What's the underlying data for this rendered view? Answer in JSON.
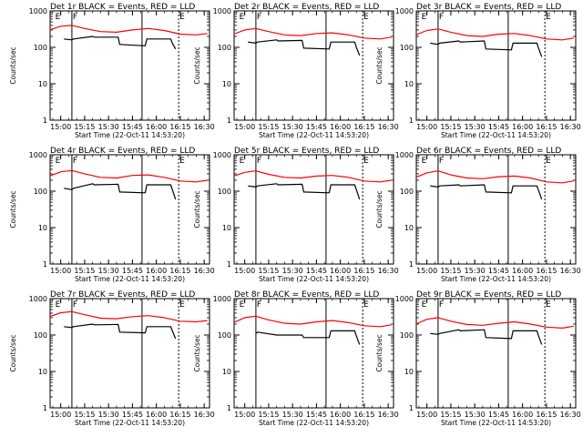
{
  "chart_data": [
    {
      "type": "line",
      "title": "Det 1r BLACK = Events, RED = LLD",
      "xlabel": "Start Time (22-Oct-11 14:53:20)",
      "ylabel": "Counts/sec",
      "yscale": "log",
      "ylim": [
        1,
        1000
      ],
      "xlim": [
        "14:53:20",
        "16:33:20"
      ],
      "xticks": [
        "15:00",
        "15:15",
        "15:30",
        "15:45",
        "16:00",
        "16:15",
        "16:30"
      ],
      "yticks": [
        "1",
        "10",
        "100",
        "1000"
      ],
      "markers": [
        {
          "label": "E",
          "time": "14:56"
        },
        {
          "label": "F",
          "time": "15:07"
        },
        {
          "label": "E",
          "time": "16:14"
        }
      ],
      "series": [
        {
          "color": "#ff0000",
          "x": [
            "14:53",
            "15:00",
            "15:07",
            "15:15",
            "15:25",
            "15:35",
            "15:45",
            "15:55",
            "16:05",
            "16:15",
            "16:25",
            "16:32"
          ],
          "y": [
            300,
            380,
            400,
            330,
            270,
            260,
            300,
            330,
            290,
            230,
            220,
            240
          ]
        },
        {
          "color": "#000000",
          "x": [
            "15:02",
            "15:07",
            "15:08",
            "15:20",
            "15:21",
            "15:36",
            "15:37",
            "15:53",
            "15:54",
            "16:09",
            "16:10",
            "16:12"
          ],
          "y": [
            170,
            160,
            170,
            200,
            190,
            190,
            120,
            110,
            170,
            170,
            130,
            90
          ]
        }
      ]
    },
    {
      "type": "line",
      "title": "Det 2r BLACK = Events, RED = LLD",
      "xlabel": "Start Time (22-Oct-11 14:53:20)",
      "ylabel": "Counts/sec",
      "yscale": "log",
      "ylim": [
        1,
        1000
      ],
      "xlim": [
        "14:53:20",
        "16:33:20"
      ],
      "xticks": [
        "15:00",
        "15:15",
        "15:30",
        "15:45",
        "16:00",
        "16:15",
        "16:30"
      ],
      "yticks": [
        "1",
        "10",
        "100",
        "1000"
      ],
      "markers": [
        {
          "label": "E",
          "time": "14:56"
        },
        {
          "label": "F",
          "time": "15:07"
        },
        {
          "label": "E",
          "time": "16:14"
        }
      ],
      "series": [
        {
          "color": "#ff0000",
          "x": [
            "14:53",
            "15:00",
            "15:07",
            "15:15",
            "15:25",
            "15:35",
            "15:45",
            "15:55",
            "16:05",
            "16:15",
            "16:25",
            "16:32"
          ],
          "y": [
            230,
            300,
            330,
            270,
            220,
            210,
            240,
            250,
            220,
            180,
            170,
            190
          ]
        },
        {
          "color": "#000000",
          "x": [
            "15:02",
            "15:07",
            "15:08",
            "15:20",
            "15:21",
            "15:36",
            "15:37",
            "15:53",
            "15:54",
            "16:09",
            "16:10",
            "16:12"
          ],
          "y": [
            140,
            130,
            140,
            160,
            150,
            155,
            95,
            90,
            140,
            140,
            100,
            60
          ]
        }
      ]
    },
    {
      "type": "line",
      "title": "Det 3r BLACK = Events, RED = LLD",
      "xlabel": "Start Time (22-Oct-11 14:53:20)",
      "ylabel": "Counts/sec",
      "yscale": "log",
      "ylim": [
        1,
        1000
      ],
      "xlim": [
        "14:53:20",
        "16:33:20"
      ],
      "xticks": [
        "15:00",
        "15:15",
        "15:30",
        "15:45",
        "16:00",
        "16:15",
        "16:30"
      ],
      "yticks": [
        "1",
        "10",
        "100",
        "1000"
      ],
      "markers": [
        {
          "label": "E",
          "time": "14:56"
        },
        {
          "label": "F",
          "time": "15:07"
        },
        {
          "label": "E",
          "time": "16:14"
        }
      ],
      "series": [
        {
          "color": "#ff0000",
          "x": [
            "14:53",
            "15:00",
            "15:07",
            "15:15",
            "15:25",
            "15:35",
            "15:45",
            "15:55",
            "16:05",
            "16:15",
            "16:25",
            "16:32"
          ],
          "y": [
            220,
            290,
            320,
            260,
            210,
            200,
            230,
            240,
            210,
            170,
            160,
            180
          ]
        },
        {
          "color": "#000000",
          "x": [
            "15:02",
            "15:07",
            "15:08",
            "15:20",
            "15:21",
            "15:36",
            "15:37",
            "15:53",
            "15:54",
            "16:09",
            "16:10",
            "16:12"
          ],
          "y": [
            130,
            120,
            130,
            150,
            140,
            150,
            90,
            85,
            130,
            130,
            95,
            55
          ]
        }
      ]
    },
    {
      "type": "line",
      "title": "Det 4r BLACK = Events, RED = LLD",
      "xlabel": "Start Time (22-Oct-11 14:53:20)",
      "ylabel": "Counts/sec",
      "yscale": "log",
      "ylim": [
        1,
        1000
      ],
      "xlim": [
        "14:53:20",
        "16:33:20"
      ],
      "xticks": [
        "15:00",
        "15:15",
        "15:30",
        "15:45",
        "16:00",
        "16:15",
        "16:30"
      ],
      "yticks": [
        "1",
        "10",
        "100",
        "1000"
      ],
      "markers": [
        {
          "label": "E",
          "time": "14:56"
        },
        {
          "label": "F",
          "time": "15:07"
        },
        {
          "label": "E",
          "time": "16:14"
        }
      ],
      "series": [
        {
          "color": "#ff0000",
          "x": [
            "14:53",
            "15:00",
            "15:07",
            "15:15",
            "15:25",
            "15:35",
            "15:45",
            "15:55",
            "16:05",
            "16:15",
            "16:25",
            "16:32"
          ],
          "y": [
            260,
            340,
            370,
            300,
            240,
            230,
            270,
            280,
            240,
            190,
            180,
            200
          ]
        },
        {
          "color": "#000000",
          "x": [
            "15:02",
            "15:07",
            "15:08",
            "15:20",
            "15:21",
            "15:36",
            "15:37",
            "15:53",
            "15:54",
            "16:09",
            "16:10",
            "16:12"
          ],
          "y": [
            120,
            110,
            120,
            160,
            150,
            155,
            95,
            90,
            150,
            150,
            110,
            60
          ]
        }
      ]
    },
    {
      "type": "line",
      "title": "Det 5r BLACK = Events, RED = LLD",
      "xlabel": "Start Time (22-Oct-11 14:53:20)",
      "ylabel": "Counts/sec",
      "yscale": "log",
      "ylim": [
        1,
        1000
      ],
      "xlim": [
        "14:53:20",
        "16:33:20"
      ],
      "xticks": [
        "15:00",
        "15:15",
        "15:30",
        "15:45",
        "16:00",
        "16:15",
        "16:30"
      ],
      "yticks": [
        "1",
        "10",
        "100",
        "1000"
      ],
      "markers": [
        {
          "label": "E",
          "time": "14:56"
        },
        {
          "label": "F",
          "time": "15:07"
        },
        {
          "label": "E",
          "time": "16:14"
        }
      ],
      "series": [
        {
          "color": "#ff0000",
          "x": [
            "14:53",
            "15:00",
            "15:07",
            "15:15",
            "15:25",
            "15:35",
            "15:45",
            "15:55",
            "16:05",
            "16:15",
            "16:25",
            "16:32"
          ],
          "y": [
            260,
            330,
            360,
            290,
            240,
            230,
            260,
            270,
            240,
            190,
            180,
            200
          ]
        },
        {
          "color": "#000000",
          "x": [
            "15:02",
            "15:07",
            "15:08",
            "15:20",
            "15:21",
            "15:36",
            "15:37",
            "15:53",
            "15:54",
            "16:09",
            "16:10",
            "16:12"
          ],
          "y": [
            140,
            130,
            140,
            160,
            150,
            155,
            95,
            90,
            150,
            150,
            110,
            60
          ]
        }
      ]
    },
    {
      "type": "line",
      "title": "Det 6r BLACK = Events, RED = LLD",
      "xlabel": "Start Time (22-Oct-11 14:53:20)",
      "ylabel": "Counts/sec",
      "yscale": "log",
      "ylim": [
        1,
        1000
      ],
      "xlim": [
        "14:53:20",
        "16:33:20"
      ],
      "xticks": [
        "15:00",
        "15:15",
        "15:30",
        "15:45",
        "16:00",
        "16:15",
        "16:30"
      ],
      "yticks": [
        "1",
        "10",
        "100",
        "1000"
      ],
      "markers": [
        {
          "label": "E",
          "time": "14:56"
        },
        {
          "label": "F",
          "time": "15:07"
        },
        {
          "label": "E",
          "time": "16:14"
        }
      ],
      "series": [
        {
          "color": "#ff0000",
          "x": [
            "14:53",
            "15:00",
            "15:07",
            "15:15",
            "15:25",
            "15:35",
            "15:45",
            "15:55",
            "16:05",
            "16:15",
            "16:25",
            "16:32"
          ],
          "y": [
            240,
            320,
            360,
            280,
            230,
            220,
            250,
            260,
            230,
            180,
            170,
            190
          ]
        },
        {
          "color": "#000000",
          "x": [
            "15:02",
            "15:07",
            "15:08",
            "15:20",
            "15:21",
            "15:36",
            "15:37",
            "15:53",
            "15:54",
            "16:09",
            "16:10",
            "16:12"
          ],
          "y": [
            140,
            130,
            140,
            150,
            140,
            150,
            95,
            90,
            140,
            140,
            105,
            60
          ]
        }
      ]
    },
    {
      "type": "line",
      "title": "Det 7r BLACK = Events, RED = LLD",
      "xlabel": "Start Time (22-Oct-11 14:53:20)",
      "ylabel": "Counts/sec",
      "yscale": "log",
      "ylim": [
        1,
        1000
      ],
      "xlim": [
        "14:53:20",
        "16:33:20"
      ],
      "xticks": [
        "15:00",
        "15:15",
        "15:30",
        "15:45",
        "16:00",
        "16:15",
        "16:30"
      ],
      "yticks": [
        "1",
        "10",
        "100",
        "1000"
      ],
      "markers": [
        {
          "label": "E",
          "time": "14:56"
        },
        {
          "label": "F",
          "time": "15:07"
        },
        {
          "label": "E",
          "time": "16:14"
        }
      ],
      "series": [
        {
          "color": "#ff0000",
          "x": [
            "14:53",
            "15:00",
            "15:07",
            "15:15",
            "15:25",
            "15:35",
            "15:45",
            "15:55",
            "16:05",
            "16:15",
            "16:25",
            "16:32"
          ],
          "y": [
            320,
            410,
            440,
            360,
            290,
            280,
            320,
            340,
            300,
            240,
            230,
            250
          ]
        },
        {
          "color": "#000000",
          "x": [
            "15:02",
            "15:07",
            "15:08",
            "15:20",
            "15:21",
            "15:36",
            "15:37",
            "15:53",
            "15:54",
            "16:09",
            "16:10",
            "16:12"
          ],
          "y": [
            170,
            160,
            170,
            200,
            190,
            195,
            120,
            115,
            170,
            170,
            130,
            80
          ]
        }
      ]
    },
    {
      "type": "line",
      "title": "Det 8r BLACK = Events, RED = LLD",
      "xlabel": "Start Time (22-Oct-11 14:53:20)",
      "ylabel": "Counts/sec",
      "yscale": "log",
      "ylim": [
        1,
        1000
      ],
      "xlim": [
        "14:53:20",
        "16:33:20"
      ],
      "xticks": [
        "15:00",
        "15:15",
        "15:30",
        "15:45",
        "16:00",
        "16:15",
        "16:30"
      ],
      "yticks": [
        "1",
        "10",
        "100",
        "1000"
      ],
      "markers": [
        {
          "label": "E",
          "time": "14:56"
        },
        {
          "label": "F",
          "time": "15:07"
        },
        {
          "label": "E",
          "time": "16:14"
        }
      ],
      "series": [
        {
          "color": "#ff0000",
          "x": [
            "14:53",
            "15:00",
            "15:07",
            "15:15",
            "15:25",
            "15:35",
            "15:45",
            "15:55",
            "16:05",
            "16:15",
            "16:25",
            "16:32"
          ],
          "y": [
            220,
            300,
            330,
            260,
            210,
            200,
            230,
            250,
            220,
            180,
            170,
            190
          ]
        },
        {
          "color": "#000000",
          "x": [
            "15:07",
            "15:08",
            "15:20",
            "15:36",
            "15:37",
            "15:53",
            "15:54",
            "16:09",
            "16:10",
            "16:12"
          ],
          "y": [
            110,
            120,
            100,
            100,
            85,
            85,
            130,
            130,
            95,
            55
          ]
        }
      ]
    },
    {
      "type": "line",
      "title": "Det 9r BLACK = Events, RED = LLD",
      "xlabel": "Start Time (22-Oct-11 14:53:20)",
      "ylabel": "Counts/sec",
      "yscale": "log",
      "ylim": [
        1,
        1000
      ],
      "xlim": [
        "14:53:20",
        "16:33:20"
      ],
      "xticks": [
        "15:00",
        "15:15",
        "15:30",
        "15:45",
        "16:00",
        "16:15",
        "16:30"
      ],
      "yticks": [
        "1",
        "10",
        "100",
        "1000"
      ],
      "markers": [
        {
          "label": "E",
          "time": "14:56"
        },
        {
          "label": "F",
          "time": "15:07"
        },
        {
          "label": "E",
          "time": "16:14"
        }
      ],
      "series": [
        {
          "color": "#ff0000",
          "x": [
            "14:53",
            "15:00",
            "15:07",
            "15:15",
            "15:25",
            "15:35",
            "15:45",
            "15:55",
            "16:05",
            "16:15",
            "16:25",
            "16:32"
          ],
          "y": [
            200,
            270,
            300,
            240,
            195,
            185,
            210,
            230,
            200,
            165,
            155,
            175
          ]
        },
        {
          "color": "#000000",
          "x": [
            "15:02",
            "15:07",
            "15:08",
            "15:20",
            "15:21",
            "15:36",
            "15:37",
            "15:53",
            "15:54",
            "16:09",
            "16:10",
            "16:12"
          ],
          "y": [
            110,
            105,
            110,
            140,
            130,
            140,
            85,
            80,
            130,
            130,
            95,
            55
          ]
        }
      ]
    }
  ]
}
